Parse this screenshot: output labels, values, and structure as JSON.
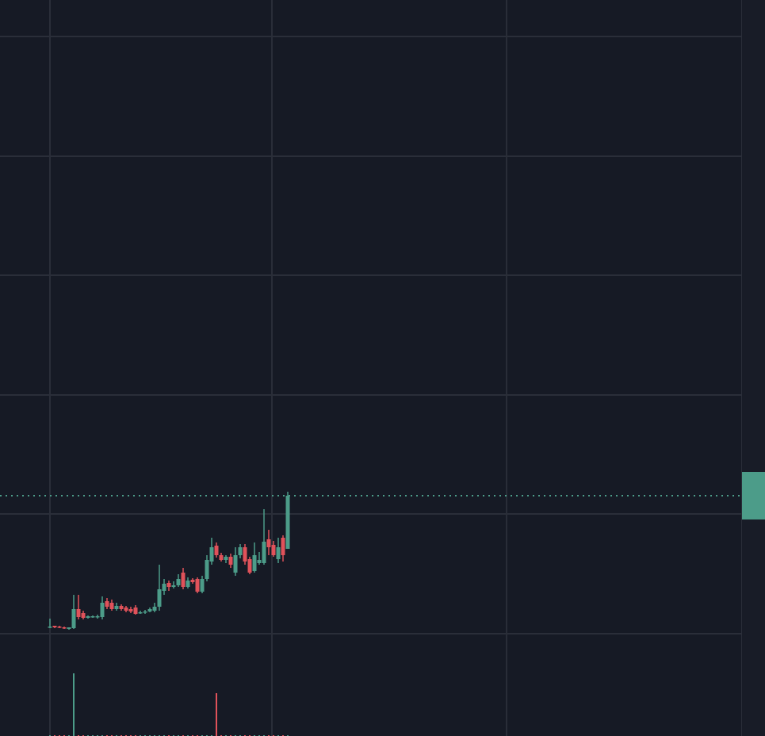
{
  "chart_data": {
    "type": "candlestick",
    "x": [
      0,
      1,
      2,
      3,
      4,
      5,
      6,
      7,
      8,
      9,
      10,
      11,
      12,
      13,
      14,
      15,
      16,
      17,
      18,
      19,
      20,
      21,
      22,
      23,
      24,
      25,
      26,
      27,
      28,
      29,
      30,
      31,
      32,
      33,
      34,
      35,
      36,
      37,
      38,
      39,
      40,
      41,
      42,
      43,
      44,
      45,
      46,
      47,
      48,
      49,
      50
    ],
    "open": [
      137,
      139,
      138,
      137,
      135,
      136,
      160,
      155,
      149,
      150,
      150,
      150,
      170,
      168,
      160,
      164,
      162,
      160,
      162,
      155,
      156,
      157,
      158,
      163,
      183,
      193,
      188,
      190,
      206,
      188,
      197,
      198,
      182,
      198,
      220,
      240,
      228,
      222,
      226,
      206,
      228,
      238,
      223,
      208,
      218,
      218,
      248,
      241,
      223,
      250,
      236
    ],
    "high": [
      148,
      139,
      139,
      138,
      136,
      178,
      178,
      158,
      152,
      152,
      153,
      176,
      174,
      172,
      168,
      166,
      164,
      163,
      165,
      158,
      159,
      162,
      168,
      216,
      198,
      196,
      195,
      204,
      212,
      200,
      199,
      200,
      202,
      228,
      250,
      244,
      231,
      228,
      230,
      238,
      242,
      242,
      226,
      244,
      232,
      286,
      260,
      246,
      250,
      253,
      308
    ],
    "low": [
      136,
      136,
      136,
      135,
      134,
      135,
      147,
      147,
      148,
      149,
      148,
      147,
      160,
      158,
      158,
      158,
      156,
      155,
      153,
      154,
      154,
      156,
      156,
      158,
      178,
      183,
      186,
      188,
      185,
      186,
      192,
      180,
      180,
      195,
      216,
      225,
      220,
      218,
      212,
      202,
      224,
      216,
      204,
      206,
      216,
      216,
      228,
      226,
      218,
      220,
      236
    ],
    "close": [
      138,
      137,
      137,
      136,
      137,
      160,
      150,
      149,
      151,
      151,
      151,
      168,
      163,
      160,
      164,
      160,
      158,
      157,
      154,
      156,
      157,
      160,
      163,
      185,
      192,
      188,
      190,
      198,
      188,
      196,
      194,
      182,
      198,
      222,
      238,
      228,
      222,
      226,
      216,
      228,
      238,
      220,
      206,
      228,
      222,
      245,
      238,
      228,
      238,
      228,
      303
    ],
    "volume": [
      1,
      1,
      1,
      1,
      1,
      79,
      1,
      1,
      1,
      1,
      1,
      1,
      1,
      1,
      1,
      1,
      1,
      1,
      1,
      1,
      1,
      1,
      1,
      1,
      1,
      1,
      1,
      1,
      1,
      1,
      1,
      1,
      1,
      1,
      1,
      54,
      1,
      1,
      1,
      1,
      1,
      1,
      1,
      1,
      1,
      1,
      1,
      1,
      1,
      1,
      1
    ],
    "volume_lim": [
      0,
      928
    ],
    "up_color": "#4c9c89",
    "down_color": "#e0525a",
    "xlim": [
      -10.5,
      145.33
    ],
    "xticks": [
      0,
      46.67,
      96
    ],
    "ylim": [
      0,
      928
    ],
    "yticks": [
      129,
      280,
      430,
      581,
      731,
      882
    ],
    "grid": true,
    "last_price_line": true
  }
}
